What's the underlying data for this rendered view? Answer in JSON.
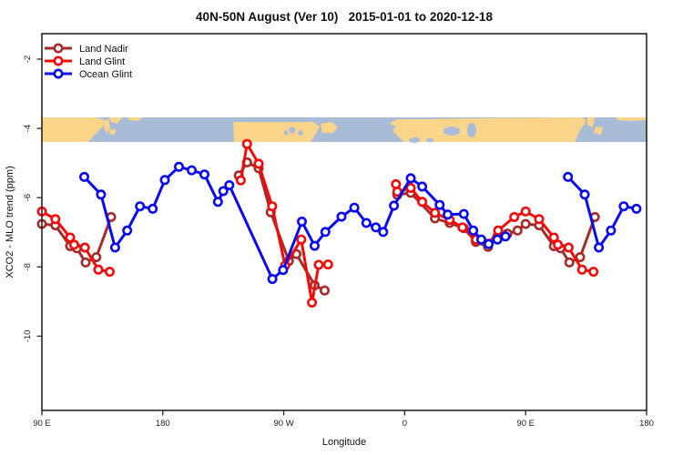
{
  "title": "40N-50N August (Ver 10)   2015-01-01 to 2020-12-18",
  "axes": {
    "x": {
      "label": "Longitude",
      "ticks": [
        {
          "pos": 90,
          "label": "90 E"
        },
        {
          "pos": 180,
          "label": "180"
        },
        {
          "pos": 270,
          "label": "90 W"
        },
        {
          "pos": 360,
          "label": "0"
        },
        {
          "pos": 450,
          "label": "90 E"
        },
        {
          "pos": 540,
          "label": "180"
        }
      ]
    },
    "y": {
      "label": "XCO2 - MLO trend (ppm)",
      "ticks": [
        {
          "pos": -2,
          "label": "-2"
        },
        {
          "pos": -4,
          "label": "-4"
        },
        {
          "pos": -6,
          "label": "-6"
        },
        {
          "pos": -8,
          "label": "-8"
        },
        {
          "pos": -10,
          "label": "-10"
        }
      ]
    }
  },
  "legend": [
    {
      "name": "Land Nadir",
      "color": "#A52A2A"
    },
    {
      "name": "Land Glint",
      "color": "#F50A0A"
    },
    {
      "name": "Ocean Glint",
      "color": "#0A0AF0"
    }
  ],
  "map_band": {
    "ocean_color": "#A8BCD8",
    "land_color": "#FAD488",
    "top_value": -3.68,
    "bottom_value": -4.39
  },
  "chart_data": {
    "type": "line",
    "title": "40N-50N August (Ver 10)   2015-01-01 to 2020-12-18",
    "xlabel": "Longitude",
    "ylabel": "XCO2 - MLO trend (ppm)",
    "x_note": "x axis runs eastward from 90E through 180, 90W, 0, 90E to 180 (450 deg; 90E-180 data repeated)",
    "x_unit": "degrees east of 0, continuing past 360",
    "xlim": [
      90,
      540
    ],
    "ylim": [
      -12.1,
      -1.3
    ],
    "grid": false,
    "legend_position": "top-left inside",
    "series": [
      {
        "name": "Land Nadir",
        "color": "#A52A2A",
        "segments": [
          [
            [
              90,
              -6.76
            ],
            [
              100,
              -6.8
            ],
            [
              111,
              -7.4
            ],
            [
              116,
              -7.46
            ],
            [
              122.5,
              -7.87
            ],
            [
              130.5,
              -7.72
            ],
            [
              141.5,
              -6.56
            ]
          ],
          [
            [
              236.5,
              -5.36
            ],
            [
              242.7,
              -4.98
            ],
            [
              251.3,
              -5.15
            ],
            [
              260.3,
              -6.42
            ],
            [
              273.8,
              -7.83
            ],
            [
              279.4,
              -7.63
            ],
            [
              293,
              -8.53
            ],
            [
              300.4,
              -8.68
            ]
          ],
          [
            [
              354.5,
              -5.92
            ],
            [
              364.5,
              -5.86
            ],
            [
              382.5,
              -6.6
            ],
            [
              393.5,
              -6.73
            ],
            [
              404,
              -6.88
            ],
            [
              413,
              -7.28
            ],
            [
              422,
              -7.42
            ],
            [
              429,
              -7.12
            ],
            [
              436.5,
              -7.04
            ],
            [
              444,
              -6.95
            ],
            [
              450,
              -6.76
            ],
            [
              460,
              -6.8
            ],
            [
              471,
              -7.4
            ],
            [
              476,
              -7.46
            ],
            [
              482.5,
              -7.87
            ],
            [
              490.5,
              -7.72
            ],
            [
              501.5,
              -6.56
            ]
          ]
        ]
      },
      {
        "name": "Land Glint",
        "color": "#F50A0A",
        "segments": [
          [
            [
              90,
              -6.4
            ],
            [
              100,
              -6.62
            ],
            [
              111,
              -7.15
            ],
            [
              114,
              -7.36
            ],
            [
              122,
              -7.44
            ],
            [
              132,
              -8.08
            ],
            [
              140.5,
              -8.14
            ]
          ],
          [
            [
              238,
              -5.5
            ],
            [
              242.7,
              -4.45
            ],
            [
              251.3,
              -5.02
            ],
            [
              261.4,
              -6.25
            ],
            [
              271,
              -7.96
            ],
            [
              283,
              -7.21
            ],
            [
              291,
              -9.03
            ],
            [
              296,
              -7.94
            ],
            [
              303,
              -7.93
            ]
          ],
          [
            [
              353.5,
              -5.61
            ],
            [
              354.5,
              -5.83
            ],
            [
              364.5,
              -5.72
            ],
            [
              373,
              -6.12
            ],
            [
              382.5,
              -6.44
            ],
            [
              393.5,
              -6.64
            ],
            [
              403,
              -6.86
            ],
            [
              413,
              -7.21
            ],
            [
              422.5,
              -7.33
            ],
            [
              429.5,
              -6.95
            ],
            [
              441.5,
              -6.56
            ],
            [
              450,
              -6.4
            ],
            [
              460,
              -6.62
            ],
            [
              471,
              -7.15
            ],
            [
              474,
              -7.36
            ],
            [
              482,
              -7.44
            ],
            [
              492,
              -8.08
            ],
            [
              500.5,
              -8.14
            ]
          ]
        ]
      },
      {
        "name": "Ocean Glint",
        "color": "#0A0AF0",
        "segments": [
          [
            [
              121.5,
              -5.4
            ],
            [
              134,
              -5.91
            ],
            [
              144.5,
              -7.44
            ],
            [
              153.5,
              -6.95
            ],
            [
              163,
              -6.25
            ],
            [
              172.5,
              -6.32
            ],
            [
              181.5,
              -5.49
            ],
            [
              192,
              -5.11
            ],
            [
              201.5,
              -5.21
            ],
            [
              211,
              -5.33
            ],
            [
              221,
              -6.12
            ],
            [
              225,
              -5.81
            ],
            [
              229.5,
              -5.64
            ],
            [
              261.5,
              -8.35
            ],
            [
              269.5,
              -8.09
            ],
            [
              283.5,
              -6.69
            ],
            [
              293,
              -7.39
            ],
            [
              301,
              -6.99
            ],
            [
              313,
              -6.55
            ],
            [
              322.5,
              -6.29
            ],
            [
              331.5,
              -6.73
            ],
            [
              338.5,
              -6.86
            ],
            [
              344,
              -6.99
            ],
            [
              352,
              -6.23
            ],
            [
              364.5,
              -5.44
            ],
            [
              373,
              -5.68
            ],
            [
              386,
              -6.21
            ],
            [
              392,
              -6.49
            ],
            [
              404,
              -6.47
            ],
            [
              411,
              -6.95
            ],
            [
              417,
              -7.21
            ],
            [
              422.5,
              -7.34
            ],
            [
              429,
              -7.21
            ],
            [
              435,
              -7.12
            ]
          ],
          [
            [
              481.5,
              -5.4
            ],
            [
              494,
              -5.91
            ],
            [
              504.5,
              -7.44
            ],
            [
              513.5,
              -6.95
            ],
            [
              523,
              -6.25
            ],
            [
              532.5,
              -6.32
            ]
          ]
        ]
      }
    ]
  }
}
